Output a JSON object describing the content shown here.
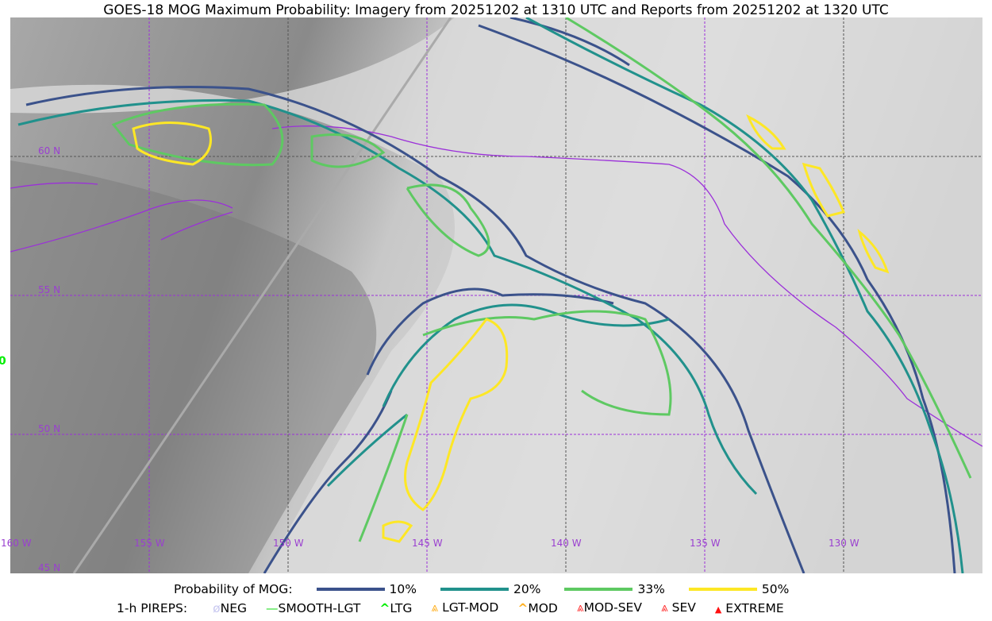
{
  "title": "GOES-18 MOG Maximum Probability: Imagery from 20251202 at 1310 UTC and Reports from 20251202 at 1320 UTC",
  "map": {
    "lon_labels": [
      "160 W",
      "155 W",
      "150 W",
      "145 W",
      "140 W",
      "135 W",
      "130 W"
    ],
    "lat_labels": [
      "60 N",
      "55 N",
      "50 N",
      "45 N"
    ],
    "pirep_marker_label": "0",
    "colors": {
      "coastline": "#9b30d9",
      "grid": "#9b30d9",
      "p10": "#3b528b",
      "p20": "#21918c",
      "p33": "#5ec962",
      "p50": "#fde725"
    }
  },
  "legend": {
    "prob_title": "Probability of MOG:",
    "prob_items": [
      {
        "label": "10%",
        "color": "#3b528b"
      },
      {
        "label": "20%",
        "color": "#21918c"
      },
      {
        "label": "33%",
        "color": "#5ec962"
      },
      {
        "label": "50%",
        "color": "#fde725"
      }
    ],
    "pirep_title": "1-h PIREPS:",
    "pirep_items": [
      {
        "label": "NEG",
        "icon": "neg-icon",
        "color": "#c8c8f0",
        "glyph": "ø"
      },
      {
        "label": "SMOOTH-LGT",
        "icon": "smooth-lgt-icon",
        "color": "#22dd22",
        "glyph": "—"
      },
      {
        "label": "LTG",
        "icon": "ltg-icon",
        "color": "#00ee00",
        "glyph": "^"
      },
      {
        "label": "LGT-MOD",
        "icon": "lgt-mod-icon",
        "color": "#ffb020",
        "glyph": "⩓"
      },
      {
        "label": "MOD",
        "icon": "mod-icon",
        "color": "#ffb020",
        "glyph": "^"
      },
      {
        "label": "MOD-SEV",
        "icon": "mod-sev-icon",
        "color": "#ff3030",
        "glyph": "⩓"
      },
      {
        "label": "SEV",
        "icon": "sev-icon",
        "color": "#ff3030",
        "glyph": "⩓"
      },
      {
        "label": "EXTREME",
        "icon": "extreme-icon",
        "color": "#ff1010",
        "glyph": "▲"
      }
    ]
  }
}
